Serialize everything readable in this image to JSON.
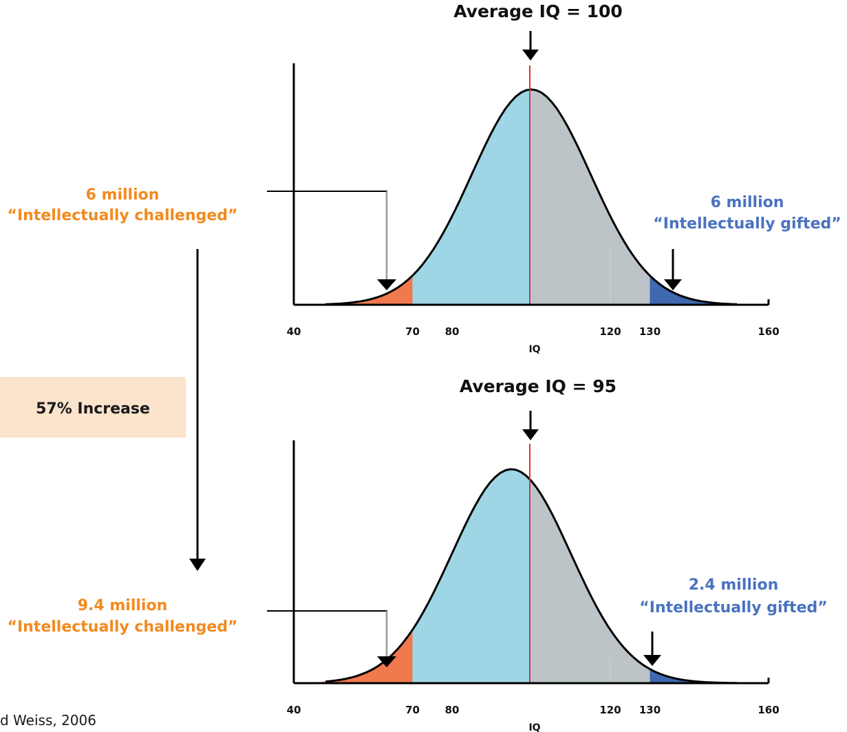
{
  "chart_data": [
    {
      "type": "area",
      "title": "Average IQ = 100",
      "mean": 100,
      "sd": 15,
      "xlabel": "IQ",
      "xlim": [
        40,
        160
      ],
      "xticks": [
        40,
        70,
        80,
        120,
        130,
        160
      ],
      "regions": [
        {
          "from": 40,
          "to": 70,
          "color": "#f07a4e"
        },
        {
          "from": 70,
          "to": 100,
          "color": "#9fd6e6"
        },
        {
          "from": 100,
          "to": 130,
          "color": "#bcc4c8"
        },
        {
          "from": 130,
          "to": 160,
          "color": "#3f68b0"
        }
      ],
      "annotations": {
        "low": {
          "count": "6 million",
          "label": "“Intellectually challenged”",
          "color": "#f28a1f"
        },
        "high": {
          "count": "6 million",
          "label": "“Intellectually gifted”",
          "color": "#4a72c0"
        }
      }
    },
    {
      "type": "area",
      "title": "Average IQ = 95",
      "mean": 95,
      "sd": 15,
      "xlabel": "IQ",
      "xlim": [
        40,
        160
      ],
      "xticks": [
        40,
        70,
        80,
        120,
        130,
        160
      ],
      "regions": [
        {
          "from": 40,
          "to": 70,
          "color": "#f07a4e"
        },
        {
          "from": 70,
          "to": 100,
          "color": "#9fd6e6"
        },
        {
          "from": 100,
          "to": 130,
          "color": "#bcc4c8"
        },
        {
          "from": 130,
          "to": 160,
          "color": "#3f68b0"
        }
      ],
      "annotations": {
        "low": {
          "count": "9.4 million",
          "label": "“Intellectually challenged”",
          "color": "#f28a1f"
        },
        "high": {
          "count": "2.4 million",
          "label": "“Intellectually gifted”",
          "color": "#4a72c0"
        }
      }
    }
  ],
  "increase": {
    "label": "57% Increase",
    "bg": "#fbe3cc"
  },
  "citation": "d Weiss, 2006"
}
